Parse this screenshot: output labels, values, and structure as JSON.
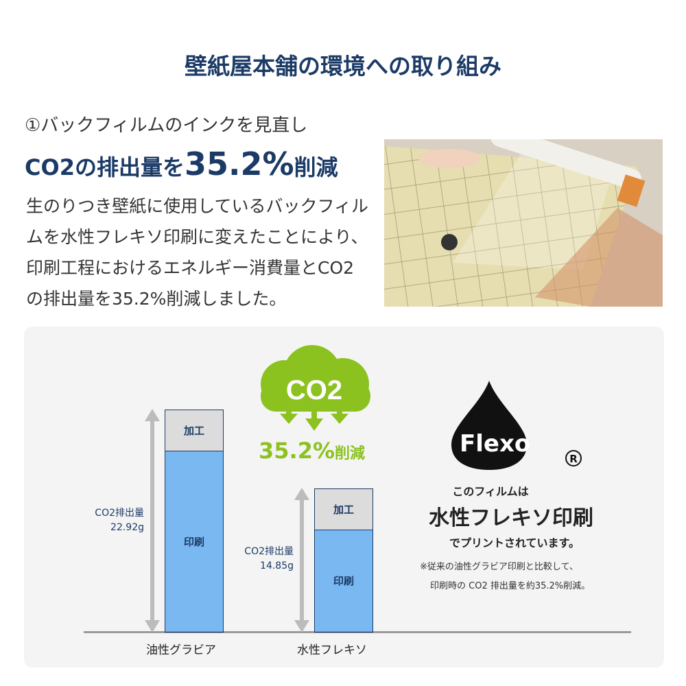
{
  "title": "壁紙屋本舗の環境への取り組み",
  "section": {
    "heading": "①バックフィルムのインクを見直し",
    "headline_prefix": "CO2の排出量を",
    "headline_value": "35.2%",
    "headline_suffix": "削減",
    "body": "生のりつき壁紙に使用しているバックフィルムを水性フレキソ印刷に変えたことにより、印刷工程におけるエネルギー消費量とCO2の排出量を35.2%削減しました。"
  },
  "chart": {
    "categories": [
      "油性グラビア",
      "水性フレキソ"
    ],
    "values_g": [
      22.92,
      14.85
    ],
    "value_labels": [
      "CO2排出量\n22.92g",
      "CO2排出量\n14.85g"
    ],
    "segment_top": "加工",
    "segment_bottom": "印刷",
    "colors": {
      "print": "#7ab8f2",
      "processing": "#dcdcdc",
      "outline": "#1b3a66"
    }
  },
  "badge": {
    "cloud_text": "CO2",
    "reduction": "35.2%",
    "reduction_suffix": "削減",
    "color": "#8cc21f"
  },
  "flexo": {
    "logo": "Flexo",
    "registered": "®",
    "line1": "このフィルムは",
    "line2": "水性フレキソ印刷",
    "line3": "でプリントされています。",
    "note1": "※従来の油性グラビア印刷と比較して、",
    "note2": "印刷時の CO2 排出量を約35.2%削減。"
  }
}
